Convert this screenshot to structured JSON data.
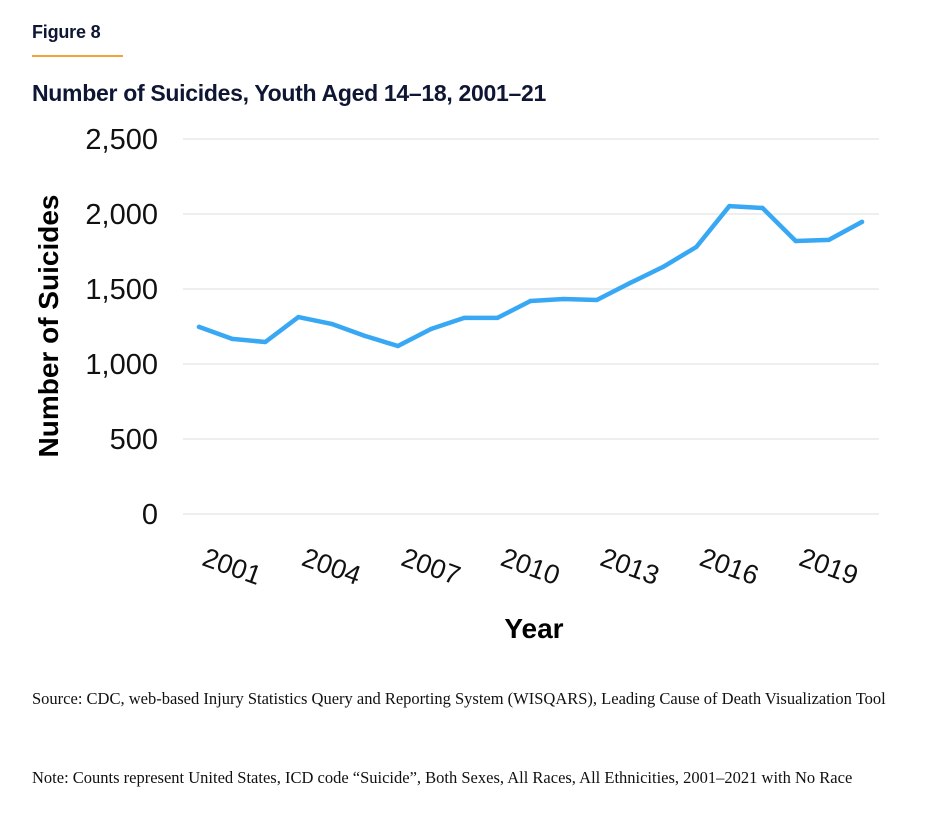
{
  "figure": {
    "label": "Figure 8",
    "accent_color": "#f0a43a",
    "title_color": "#0f1633"
  },
  "chart_data": {
    "type": "line",
    "title": "Number of Suicides, Youth Aged 14–18, 2001–21",
    "xlabel": "Year",
    "ylabel": "Number of Suicides",
    "ylim": [
      0,
      2500
    ],
    "yticks": [
      0,
      500,
      1000,
      1500,
      2000,
      2500
    ],
    "ytick_labels": [
      "0",
      "500",
      "1,000",
      "1,500",
      "2,000",
      "2,500"
    ],
    "xticks": [
      2001,
      2004,
      2007,
      2010,
      2013,
      2016,
      2019
    ],
    "xtick_labels": [
      "2001",
      "2004",
      "2007",
      "2010",
      "2013",
      "2016",
      "2019"
    ],
    "grid": true,
    "line_color": "#39a8f4",
    "grid_color": "#e3e3e3",
    "series": [
      {
        "name": "Number of Suicides",
        "x": [
          2001,
          2002,
          2003,
          2004,
          2005,
          2006,
          2007,
          2008,
          2009,
          2010,
          2011,
          2012,
          2013,
          2014,
          2015,
          2016,
          2017,
          2018,
          2019,
          2020,
          2021
        ],
        "values": [
          1247,
          1167,
          1147,
          1313,
          1267,
          1187,
          1120,
          1233,
          1307,
          1307,
          1420,
          1433,
          1427,
          1540,
          1647,
          1780,
          2053,
          2040,
          1820,
          1827,
          1947
        ]
      }
    ]
  },
  "source": "Source: CDC, web-based Injury Statistics Query and Reporting System (WISQARS), Leading Cause of Death Visualization Tool",
  "note": "Note: Counts represent United States, ICD code “Suicide”, Both Sexes, All Races, All Ethnicities, 2001–2021 with No Race"
}
